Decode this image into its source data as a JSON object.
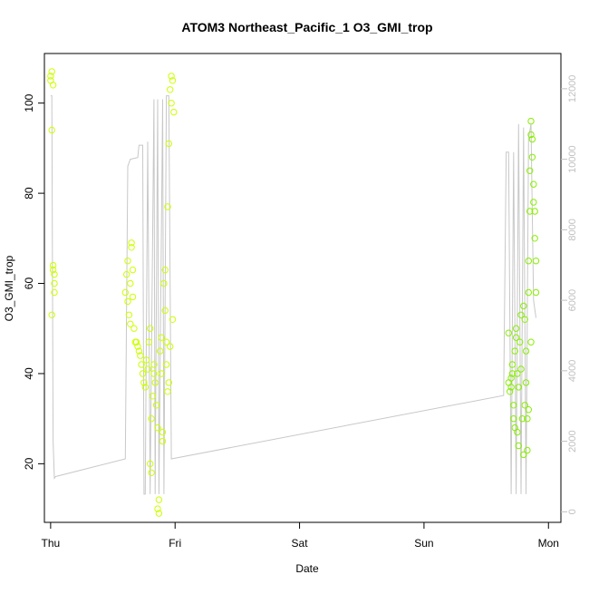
{
  "chart_data": {
    "type": "scatter",
    "title": "ATOM3 Northeast_Pacific_1 O3_GMI_trop",
    "xlabel": "Date",
    "ylabel": "O3_GMI_trop",
    "x_ticks": [
      "Thu",
      "Fri",
      "Sat",
      "Sun",
      "Mon"
    ],
    "y_ticks": [
      20,
      40,
      60,
      80,
      100
    ],
    "y2_ticks": [
      0,
      2000,
      4000,
      6000,
      8000,
      10000,
      12000
    ],
    "xlim_days": [
      -0.05,
      4.1
    ],
    "ylim": [
      7,
      111
    ],
    "y2lim": [
      -300,
      13000
    ],
    "colors": {
      "early_points": "#ccff00",
      "late_points": "#88ee00",
      "altitude_line": "#c8c8c8"
    },
    "series": [
      {
        "points": [
          [
            0.0,
            105
          ],
          [
            0.0,
            106
          ],
          [
            0.01,
            107
          ],
          [
            0.02,
            104
          ],
          [
            0.01,
            94
          ],
          [
            0.01,
            53
          ],
          [
            0.02,
            63
          ],
          [
            0.02,
            64
          ],
          [
            0.03,
            62
          ],
          [
            0.03,
            60
          ],
          [
            0.03,
            58
          ],
          [
            0.6,
            58
          ],
          [
            0.61,
            62
          ],
          [
            0.62,
            65
          ],
          [
            0.62,
            56
          ],
          [
            0.63,
            53
          ],
          [
            0.64,
            51
          ],
          [
            0.64,
            60
          ],
          [
            0.65,
            68
          ],
          [
            0.65,
            69
          ],
          [
            0.66,
            63
          ],
          [
            0.66,
            57
          ],
          [
            0.67,
            50
          ],
          [
            0.68,
            47
          ],
          [
            0.69,
            47
          ],
          [
            0.7,
            46
          ],
          [
            0.71,
            45
          ],
          [
            0.72,
            44
          ],
          [
            0.73,
            42
          ],
          [
            0.74,
            40
          ],
          [
            0.75,
            38
          ],
          [
            0.76,
            37
          ],
          [
            0.77,
            43
          ],
          [
            0.78,
            41
          ],
          [
            0.79,
            47
          ],
          [
            0.8,
            50
          ],
          [
            0.8,
            20
          ],
          [
            0.81,
            18
          ],
          [
            0.81,
            30
          ],
          [
            0.82,
            35
          ],
          [
            0.83,
            40
          ],
          [
            0.83,
            42
          ],
          [
            0.84,
            38
          ],
          [
            0.85,
            33
          ],
          [
            0.86,
            28
          ],
          [
            0.86,
            10
          ],
          [
            0.87,
            9
          ],
          [
            0.87,
            12
          ],
          [
            0.88,
            45
          ],
          [
            0.89,
            48
          ],
          [
            0.89,
            40
          ],
          [
            0.9,
            27
          ],
          [
            0.9,
            25
          ],
          [
            0.91,
            60
          ],
          [
            0.92,
            63
          ],
          [
            0.92,
            54
          ],
          [
            0.93,
            47
          ],
          [
            0.93,
            42
          ],
          [
            0.94,
            36
          ],
          [
            0.94,
            77
          ],
          [
            0.95,
            91
          ],
          [
            0.96,
            103
          ],
          [
            0.97,
            106
          ],
          [
            0.97,
            100
          ],
          [
            0.98,
            105
          ],
          [
            0.99,
            98
          ],
          [
            0.98,
            52
          ],
          [
            0.96,
            46
          ],
          [
            0.95,
            38
          ]
        ]
      },
      {
        "points": [
          [
            3.68,
            49
          ],
          [
            3.68,
            38
          ],
          [
            3.69,
            36
          ],
          [
            3.7,
            37
          ],
          [
            3.7,
            39
          ],
          [
            3.71,
            40
          ],
          [
            3.71,
            42
          ],
          [
            3.72,
            33
          ],
          [
            3.72,
            30
          ],
          [
            3.73,
            28
          ],
          [
            3.73,
            45
          ],
          [
            3.74,
            48
          ],
          [
            3.74,
            50
          ],
          [
            3.75,
            40
          ],
          [
            3.75,
            27
          ],
          [
            3.76,
            24
          ],
          [
            3.76,
            37
          ],
          [
            3.77,
            47
          ],
          [
            3.78,
            53
          ],
          [
            3.78,
            41
          ],
          [
            3.79,
            30
          ],
          [
            3.8,
            22
          ],
          [
            3.8,
            55
          ],
          [
            3.81,
            52
          ],
          [
            3.82,
            45
          ],
          [
            3.82,
            38
          ],
          [
            3.83,
            30
          ],
          [
            3.83,
            23
          ],
          [
            3.84,
            32
          ],
          [
            3.84,
            65
          ],
          [
            3.85,
            76
          ],
          [
            3.85,
            85
          ],
          [
            3.86,
            93
          ],
          [
            3.86,
            96
          ],
          [
            3.87,
            92
          ],
          [
            3.87,
            88
          ],
          [
            3.88,
            82
          ],
          [
            3.88,
            78
          ],
          [
            3.89,
            76
          ],
          [
            3.89,
            70
          ],
          [
            3.9,
            65
          ],
          [
            3.9,
            58
          ],
          [
            3.86,
            47
          ],
          [
            3.84,
            58
          ],
          [
            3.81,
            33
          ]
        ]
      },
      {
        "name": "",
        "type": "line",
        "axis": "right",
        "points": [
          [
            0.0,
            11800
          ],
          [
            0.01,
            11800
          ],
          [
            0.02,
            2000
          ],
          [
            0.03,
            950
          ],
          [
            0.04,
            1000
          ],
          [
            0.6,
            1500
          ],
          [
            0.62,
            9800
          ],
          [
            0.64,
            10000
          ],
          [
            0.7,
            10050
          ],
          [
            0.71,
            10400
          ],
          [
            0.74,
            10400
          ],
          [
            0.75,
            500
          ],
          [
            0.76,
            500
          ],
          [
            0.78,
            10500
          ],
          [
            0.8,
            500
          ],
          [
            0.83,
            11700
          ],
          [
            0.84,
            500
          ],
          [
            0.86,
            11700
          ],
          [
            0.87,
            500
          ],
          [
            0.9,
            11700
          ],
          [
            0.91,
            500
          ],
          [
            0.93,
            11800
          ],
          [
            0.95,
            11800
          ],
          [
            0.97,
            1500
          ],
          [
            3.64,
            3300
          ],
          [
            3.66,
            10200
          ],
          [
            3.68,
            10200
          ],
          [
            3.7,
            500
          ],
          [
            3.72,
            10200
          ],
          [
            3.74,
            500
          ],
          [
            3.76,
            11000
          ],
          [
            3.78,
            500
          ],
          [
            3.8,
            10900
          ],
          [
            3.82,
            500
          ],
          [
            3.84,
            10600
          ],
          [
            3.86,
            11000
          ],
          [
            3.88,
            6000
          ],
          [
            3.9,
            5500
          ]
        ]
      }
    ]
  }
}
